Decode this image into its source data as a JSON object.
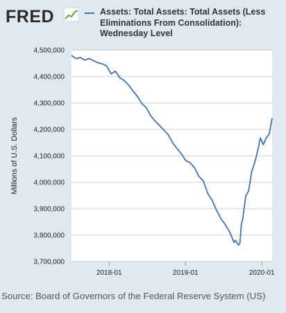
{
  "header": {
    "logo_text": "FRED",
    "legend_text": "Assets: Total Assets: Total Assets (Less Eliminations From Consolidation): Wednesday Level"
  },
  "source": "Source: Board of Governors of the Federal Reserve System (US)",
  "colors": {
    "background": "#e1e9f0",
    "plot_area": "#ffffff",
    "series": "#4572a7",
    "grid": "#cccccc"
  },
  "icons": {
    "logo_icon": "line-chart-icon"
  },
  "chart_data": {
    "type": "line",
    "title": "",
    "ylabel": "Millions of U.S. Dollars",
    "xlabel": "",
    "grid": true,
    "legend_position": "top",
    "x_ticks": [
      "2018-01",
      "2019-01",
      "2020-01"
    ],
    "x_tick_dates": [
      "2018-01-01",
      "2019-01-01",
      "2020-01-01"
    ],
    "xlim": [
      "2017-07-05",
      "2020-02-19"
    ],
    "y_ticks": [
      "3,700,000",
      "3,800,000",
      "3,900,000",
      "4,000,000",
      "4,100,000",
      "4,200,000",
      "4,300,000",
      "4,400,000",
      "4,500,000"
    ],
    "y_tick_values": [
      3700000,
      3800000,
      3900000,
      4000000,
      4100000,
      4200000,
      4300000,
      4400000,
      4500000
    ],
    "ylim": [
      3700000,
      4500000
    ],
    "series": [
      {
        "name": "Assets: Total Assets: Total Assets (Less Eliminations From Consolidation): Wednesday Level",
        "x": [
          "2017-07-05",
          "2017-07-26",
          "2017-08-16",
          "2017-09-06",
          "2017-09-27",
          "2017-10-18",
          "2017-11-08",
          "2017-11-29",
          "2017-12-20",
          "2018-01-10",
          "2018-01-31",
          "2018-02-21",
          "2018-03-14",
          "2018-04-04",
          "2018-04-25",
          "2018-05-16",
          "2018-06-06",
          "2018-06-27",
          "2018-07-18",
          "2018-08-08",
          "2018-08-29",
          "2018-09-19",
          "2018-10-10",
          "2018-10-31",
          "2018-11-21",
          "2018-12-12",
          "2019-01-02",
          "2019-01-23",
          "2019-02-13",
          "2019-03-06",
          "2019-03-27",
          "2019-04-17",
          "2019-05-08",
          "2019-05-29",
          "2019-06-19",
          "2019-07-10",
          "2019-07-31",
          "2019-08-21",
          "2019-08-28",
          "2019-09-11",
          "2019-09-18",
          "2019-09-25",
          "2019-10-02",
          "2019-10-16",
          "2019-10-30",
          "2019-11-13",
          "2019-11-27",
          "2019-12-11",
          "2019-12-25",
          "2020-01-08",
          "2020-01-22",
          "2020-02-05",
          "2020-02-19"
        ],
        "values": [
          4480000,
          4468000,
          4472000,
          4462000,
          4468000,
          4460000,
          4452000,
          4448000,
          4440000,
          4410000,
          4420000,
          4395000,
          4385000,
          4368000,
          4345000,
          4325000,
          4298000,
          4283000,
          4252000,
          4232000,
          4215000,
          4198000,
          4180000,
          4150000,
          4128000,
          4108000,
          4082000,
          4074000,
          4055000,
          4022000,
          4005000,
          3958000,
          3932000,
          3895000,
          3862000,
          3840000,
          3812000,
          3772000,
          3780000,
          3762000,
          3770000,
          3840000,
          3862000,
          3948000,
          3968000,
          4040000,
          4072000,
          4115000,
          4168000,
          4142000,
          4168000,
          4182000,
          4242000
        ]
      }
    ]
  }
}
